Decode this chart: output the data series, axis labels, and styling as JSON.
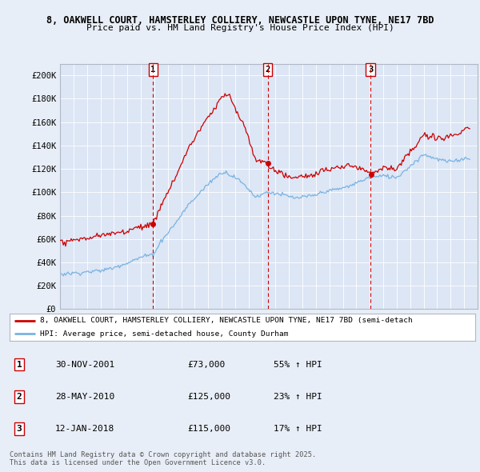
{
  "title_line1": "8, OAKWELL COURT, HAMSTERLEY COLLIERY, NEWCASTLE UPON TYNE, NE17 7BD",
  "title_line2": "Price paid vs. HM Land Registry's House Price Index (HPI)",
  "background_color": "#e8eef7",
  "plot_bg_color": "#dce6f5",
  "hpi_color": "#7ab3e0",
  "price_color": "#cc0000",
  "vline_color": "#cc0000",
  "sale_dates_dec": [
    2001.917,
    2010.414,
    2018.042
  ],
  "sale_prices": [
    73000,
    125000,
    115000
  ],
  "sale_labels": [
    "1",
    "2",
    "3"
  ],
  "legend_price_label": "8, OAKWELL COURT, HAMSTERLEY COLLIERY, NEWCASTLE UPON TYNE, NE17 7BD (semi-detach",
  "legend_hpi_label": "HPI: Average price, semi-detached house, County Durham",
  "table_rows": [
    [
      "1",
      "30-NOV-2001",
      "£73,000",
      "55% ↑ HPI"
    ],
    [
      "2",
      "28-MAY-2010",
      "£125,000",
      "23% ↑ HPI"
    ],
    [
      "3",
      "12-JAN-2018",
      "£115,000",
      "17% ↑ HPI"
    ]
  ],
  "footer_text": "Contains HM Land Registry data © Crown copyright and database right 2025.\nThis data is licensed under the Open Government Licence v3.0.",
  "ylim": [
    0,
    210000
  ],
  "yticks": [
    0,
    20000,
    40000,
    60000,
    80000,
    100000,
    120000,
    140000,
    160000,
    180000,
    200000
  ],
  "xlim": [
    1995,
    2026
  ],
  "hpi_keypoints_x": [
    1995.0,
    1996.0,
    1997.0,
    1998.0,
    1999.0,
    2000.0,
    2001.0,
    2001.917,
    2002.5,
    2003.5,
    2004.5,
    2005.5,
    2006.5,
    2007.2,
    2008.0,
    2008.8,
    2009.5,
    2010.414,
    2011.0,
    2011.8,
    2012.5,
    2013.0,
    2013.8,
    2014.5,
    2015.5,
    2016.5,
    2017.5,
    2018.042,
    2019.0,
    2020.0,
    2021.0,
    2022.0,
    2023.0,
    2024.0,
    2025.5
  ],
  "hpi_keypoints_y": [
    30000,
    31000,
    32000,
    33500,
    36000,
    40000,
    45000,
    47000,
    58000,
    72000,
    88000,
    100000,
    112000,
    118000,
    113000,
    105000,
    96000,
    100000,
    99000,
    97000,
    95000,
    96000,
    97000,
    100000,
    102000,
    105000,
    110000,
    112000,
    114000,
    112000,
    122000,
    132000,
    128000,
    126000,
    130000
  ],
  "red_keypoints_x": [
    1995.0,
    1996.0,
    1997.0,
    1998.0,
    1999.0,
    2000.0,
    2001.0,
    2001.917,
    2002.5,
    2003.5,
    2004.5,
    2005.5,
    2006.5,
    2007.0,
    2007.5,
    2008.0,
    2008.8,
    2009.5,
    2010.414,
    2011.0,
    2011.8,
    2012.5,
    2013.0,
    2013.8,
    2014.5,
    2015.5,
    2016.5,
    2017.5,
    2018.042,
    2019.0,
    2020.0,
    2021.0,
    2022.0,
    2023.0,
    2024.0,
    2025.5
  ],
  "red_keypoints_y": [
    57000,
    59000,
    61000,
    63000,
    65000,
    68000,
    72000,
    73000,
    90000,
    113000,
    138000,
    157000,
    172000,
    183000,
    185000,
    173000,
    155000,
    130000,
    125000,
    120000,
    115000,
    113000,
    114000,
    115000,
    118000,
    120000,
    122000,
    118000,
    115000,
    120000,
    118000,
    132000,
    148000,
    145000,
    148000,
    155000
  ]
}
